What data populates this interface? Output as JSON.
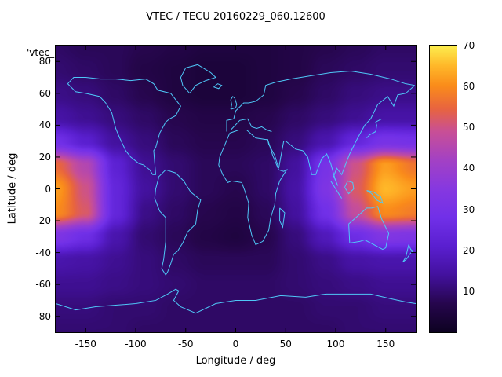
{
  "title": "VTEC / TECU 20160229_060.12600",
  "legend_label": "'vtec_",
  "axes": {
    "xlabel": "Longitude / deg",
    "ylabel": "Latitude / deg",
    "xticks": [
      -150,
      -100,
      -50,
      0,
      50,
      100,
      150
    ],
    "yticks": [
      -80,
      -60,
      -40,
      -20,
      0,
      20,
      40,
      60,
      80
    ],
    "xlim": [
      -180,
      180
    ],
    "ylim": [
      -90,
      90
    ]
  },
  "chart_data": {
    "type": "heatmap",
    "title": "VTEC / TECU 20160229_060.12600",
    "xlabel": "Longitude / deg",
    "ylabel": "Latitude / deg",
    "legend": {
      "position": "top-left",
      "label": "'vtec_"
    },
    "grid": false,
    "units": "TECU",
    "colorbar": {
      "range": [
        0,
        70
      ],
      "ticks": [
        10,
        20,
        30,
        40,
        50,
        60,
        70
      ],
      "position": "right"
    },
    "palette": {
      "stops": [
        {
          "t": 0.0,
          "color": "#0d0221"
        },
        {
          "t": 0.1,
          "color": "#26064d"
        },
        {
          "t": 0.2,
          "color": "#43119e"
        },
        {
          "t": 0.3,
          "color": "#5a1fd0"
        },
        {
          "t": 0.4,
          "color": "#7130e8"
        },
        {
          "t": 0.5,
          "color": "#8638e0"
        },
        {
          "t": 0.6,
          "color": "#a341c4"
        },
        {
          "t": 0.7,
          "color": "#c84f96"
        },
        {
          "t": 0.78,
          "color": "#e8643f"
        },
        {
          "t": 0.86,
          "color": "#fa8c1a"
        },
        {
          "t": 0.93,
          "color": "#ffb829"
        },
        {
          "t": 1.0,
          "color": "#fcee4f"
        }
      ]
    },
    "colors": {
      "coastline": "#4fc8f8",
      "border": "#000000",
      "background": "#ffffff"
    },
    "lons": [
      -180,
      -150,
      -120,
      -90,
      -60,
      -30,
      0,
      30,
      60,
      90,
      120,
      150,
      180
    ],
    "lats": [
      90,
      75,
      60,
      45,
      30,
      15,
      0,
      -15,
      -30,
      -45,
      -60,
      -75,
      -90
    ],
    "values_tecu": [
      [
        9,
        8,
        8,
        7,
        6,
        5,
        5,
        5,
        6,
        7,
        8,
        9,
        9
      ],
      [
        10,
        9,
        8,
        6,
        5,
        4,
        4,
        5,
        6,
        8,
        9,
        10,
        10
      ],
      [
        12,
        11,
        9,
        7,
        5,
        4,
        4,
        5,
        7,
        9,
        11,
        12,
        12
      ],
      [
        15,
        13,
        11,
        9,
        7,
        6,
        6,
        7,
        9,
        11,
        13,
        15,
        15
      ],
      [
        28,
        21,
        14,
        11,
        8,
        7,
        7,
        8,
        11,
        16,
        24,
        30,
        29
      ],
      [
        55,
        45,
        22,
        13,
        10,
        8,
        8,
        9,
        14,
        30,
        50,
        62,
        57
      ],
      [
        62,
        50,
        24,
        14,
        10,
        8,
        7,
        9,
        15,
        32,
        52,
        65,
        62
      ],
      [
        60,
        52,
        24,
        12,
        9,
        7,
        6,
        8,
        14,
        28,
        48,
        60,
        58
      ],
      [
        32,
        27,
        16,
        10,
        8,
        6,
        5,
        7,
        11,
        18,
        27,
        33,
        32
      ],
      [
        16,
        15,
        13,
        11,
        9,
        8,
        8,
        8,
        10,
        12,
        15,
        16,
        16
      ],
      [
        13,
        13,
        12,
        11,
        10,
        9,
        9,
        9,
        10,
        11,
        12,
        13,
        13
      ],
      [
        11,
        11,
        10,
        10,
        9,
        9,
        9,
        9,
        9,
        10,
        10,
        11,
        11
      ],
      [
        10,
        10,
        10,
        9,
        9,
        9,
        9,
        9,
        9,
        9,
        10,
        10,
        10
      ]
    ],
    "coastlines": {
      "north_america": [
        [
          -168,
          66
        ],
        [
          -160,
          61
        ],
        [
          -150,
          60
        ],
        [
          -136,
          58
        ],
        [
          -130,
          54
        ],
        [
          -124,
          48
        ],
        [
          -120,
          38
        ],
        [
          -116,
          32
        ],
        [
          -110,
          24
        ],
        [
          -105,
          20
        ],
        [
          -97,
          16
        ],
        [
          -92,
          15
        ],
        [
          -86,
          12
        ],
        [
          -83,
          9
        ],
        [
          -80,
          9
        ],
        [
          -82,
          24
        ],
        [
          -80,
          26
        ],
        [
          -76,
          35
        ],
        [
          -70,
          42
        ],
        [
          -66,
          44
        ],
        [
          -60,
          46
        ],
        [
          -55,
          52
        ],
        [
          -65,
          60
        ],
        [
          -78,
          62
        ],
        [
          -82,
          66
        ],
        [
          -90,
          69
        ],
        [
          -105,
          68
        ],
        [
          -120,
          69
        ],
        [
          -135,
          69
        ],
        [
          -150,
          70
        ],
        [
          -162,
          70
        ],
        [
          -168,
          66
        ]
      ],
      "south_america": [
        [
          -78,
          7
        ],
        [
          -70,
          12
        ],
        [
          -60,
          10
        ],
        [
          -52,
          5
        ],
        [
          -45,
          -2
        ],
        [
          -35,
          -7
        ],
        [
          -38,
          -13
        ],
        [
          -40,
          -22
        ],
        [
          -48,
          -27
        ],
        [
          -53,
          -34
        ],
        [
          -58,
          -39
        ],
        [
          -62,
          -41
        ],
        [
          -65,
          -47
        ],
        [
          -68,
          -52
        ],
        [
          -70,
          -54
        ],
        [
          -74,
          -50
        ],
        [
          -72,
          -44
        ],
        [
          -70,
          -33
        ],
        [
          -70,
          -18
        ],
        [
          -76,
          -14
        ],
        [
          -81,
          -6
        ],
        [
          -80,
          0
        ],
        [
          -77,
          7
        ],
        [
          -78,
          7
        ]
      ],
      "greenland": [
        [
          -46,
          60
        ],
        [
          -53,
          65
        ],
        [
          -55,
          70
        ],
        [
          -50,
          76
        ],
        [
          -38,
          78
        ],
        [
          -25,
          73
        ],
        [
          -20,
          70
        ],
        [
          -30,
          68
        ],
        [
          -40,
          65
        ],
        [
          -46,
          60
        ]
      ],
      "eurasia_north": [
        [
          -9,
          36
        ],
        [
          -9,
          43
        ],
        [
          -2,
          44
        ],
        [
          0,
          49
        ],
        [
          8,
          54
        ],
        [
          13,
          54
        ],
        [
          20,
          55
        ],
        [
          28,
          59
        ],
        [
          30,
          65
        ],
        [
          40,
          67
        ],
        [
          55,
          69
        ],
        [
          75,
          71
        ],
        [
          95,
          73
        ],
        [
          115,
          74
        ],
        [
          135,
          72
        ],
        [
          155,
          69
        ],
        [
          170,
          66
        ],
        [
          179,
          65
        ]
      ],
      "asia_pacific": [
        [
          179,
          65
        ],
        [
          170,
          60
        ],
        [
          162,
          59
        ],
        [
          158,
          52
        ],
        [
          152,
          58
        ],
        [
          142,
          53
        ],
        [
          135,
          44
        ],
        [
          129,
          40
        ],
        [
          122,
          32
        ],
        [
          114,
          22
        ],
        [
          109,
          14
        ],
        [
          106,
          9
        ],
        [
          101,
          13
        ],
        [
          98,
          8
        ],
        [
          102,
          2
        ],
        [
          99,
          7
        ],
        [
          95,
          16
        ],
        [
          91,
          22
        ],
        [
          86,
          19
        ],
        [
          80,
          9
        ],
        [
          76,
          9
        ],
        [
          72,
          20
        ],
        [
          67,
          24
        ],
        [
          60,
          25
        ],
        [
          56,
          27
        ],
        [
          50,
          30
        ],
        [
          48,
          30
        ],
        [
          43,
          13
        ],
        [
          39,
          21
        ],
        [
          33,
          28
        ],
        [
          32,
          31
        ]
      ],
      "mediterranean_north": [
        [
          -5,
          37
        ],
        [
          4,
          43
        ],
        [
          12,
          44
        ],
        [
          16,
          39
        ],
        [
          21,
          38
        ],
        [
          26,
          39
        ],
        [
          31,
          37
        ],
        [
          36,
          36
        ]
      ],
      "africa": [
        [
          -6,
          35
        ],
        [
          3,
          37
        ],
        [
          11,
          37
        ],
        [
          20,
          32
        ],
        [
          30,
          31
        ],
        [
          32,
          31
        ],
        [
          34,
          27
        ],
        [
          37,
          21
        ],
        [
          43,
          12
        ],
        [
          48,
          11
        ],
        [
          51,
          12
        ],
        [
          44,
          5
        ],
        [
          40,
          -3
        ],
        [
          39,
          -10
        ],
        [
          35,
          -18
        ],
        [
          33,
          -26
        ],
        [
          27,
          -33
        ],
        [
          20,
          -35
        ],
        [
          16,
          -29
        ],
        [
          12,
          -18
        ],
        [
          13,
          -9
        ],
        [
          9,
          -1
        ],
        [
          6,
          4
        ],
        [
          -4,
          5
        ],
        [
          -8,
          4
        ],
        [
          -13,
          9
        ],
        [
          -17,
          15
        ],
        [
          -16,
          20
        ],
        [
          -10,
          29
        ],
        [
          -6,
          35
        ]
      ],
      "australia": [
        [
          113,
          -22
        ],
        [
          114,
          -34
        ],
        [
          124,
          -33
        ],
        [
          129,
          -32
        ],
        [
          138,
          -35
        ],
        [
          147,
          -38
        ],
        [
          150,
          -37
        ],
        [
          153,
          -28
        ],
        [
          146,
          -19
        ],
        [
          142,
          -11
        ],
        [
          136,
          -12
        ],
        [
          131,
          -12
        ],
        [
          122,
          -17
        ],
        [
          113,
          -22
        ]
      ],
      "antarctica": [
        [
          -180,
          -72
        ],
        [
          -160,
          -76
        ],
        [
          -140,
          -74
        ],
        [
          -120,
          -73
        ],
        [
          -100,
          -72
        ],
        [
          -80,
          -70
        ],
        [
          -68,
          -66
        ],
        [
          -60,
          -63
        ],
        [
          -57,
          -64
        ],
        [
          -62,
          -70
        ],
        [
          -55,
          -74
        ],
        [
          -40,
          -78
        ],
        [
          -20,
          -72
        ],
        [
          0,
          -70
        ],
        [
          20,
          -70
        ],
        [
          45,
          -67
        ],
        [
          70,
          -68
        ],
        [
          90,
          -66
        ],
        [
          110,
          -66
        ],
        [
          135,
          -66
        ],
        [
          155,
          -69
        ],
        [
          170,
          -71
        ],
        [
          180,
          -72
        ]
      ],
      "japan": [
        [
          131,
          32
        ],
        [
          134,
          34
        ],
        [
          137,
          35
        ],
        [
          140,
          36
        ],
        [
          141,
          40
        ],
        [
          140,
          42
        ],
        [
          143,
          43
        ],
        [
          146,
          44
        ]
      ],
      "uk": [
        [
          -5,
          50
        ],
        [
          -4,
          53
        ],
        [
          -5,
          56
        ],
        [
          -3,
          58
        ],
        [
          -1,
          57
        ],
        [
          1,
          53
        ],
        [
          0,
          51
        ],
        [
          -5,
          50
        ]
      ],
      "iceland": [
        [
          -22,
          64
        ],
        [
          -18,
          66
        ],
        [
          -14,
          65
        ],
        [
          -17,
          63
        ],
        [
          -22,
          64
        ]
      ],
      "madagascar": [
        [
          44,
          -12
        ],
        [
          49,
          -15
        ],
        [
          47,
          -24
        ],
        [
          44,
          -20
        ],
        [
          44,
          -12
        ]
      ],
      "borneo": [
        [
          109,
          1
        ],
        [
          112,
          5
        ],
        [
          117,
          4
        ],
        [
          118,
          0
        ],
        [
          113,
          -3
        ],
        [
          109,
          1
        ]
      ],
      "sumatra": [
        [
          95,
          5
        ],
        [
          99,
          1
        ],
        [
          104,
          -4
        ],
        [
          106,
          -6
        ],
        [
          101,
          -1
        ],
        [
          96,
          4
        ],
        [
          95,
          5
        ]
      ],
      "new_guinea": [
        [
          131,
          -1
        ],
        [
          136,
          -3
        ],
        [
          141,
          -7
        ],
        [
          147,
          -9
        ],
        [
          145,
          -5
        ],
        [
          138,
          -2
        ],
        [
          131,
          -1
        ]
      ],
      "new_zealand": [
        [
          173,
          -35
        ],
        [
          175,
          -38
        ],
        [
          177,
          -39
        ],
        [
          174,
          -41
        ],
        [
          171,
          -44
        ],
        [
          167,
          -46
        ],
        [
          170,
          -43
        ],
        [
          173,
          -35
        ]
      ]
    }
  }
}
